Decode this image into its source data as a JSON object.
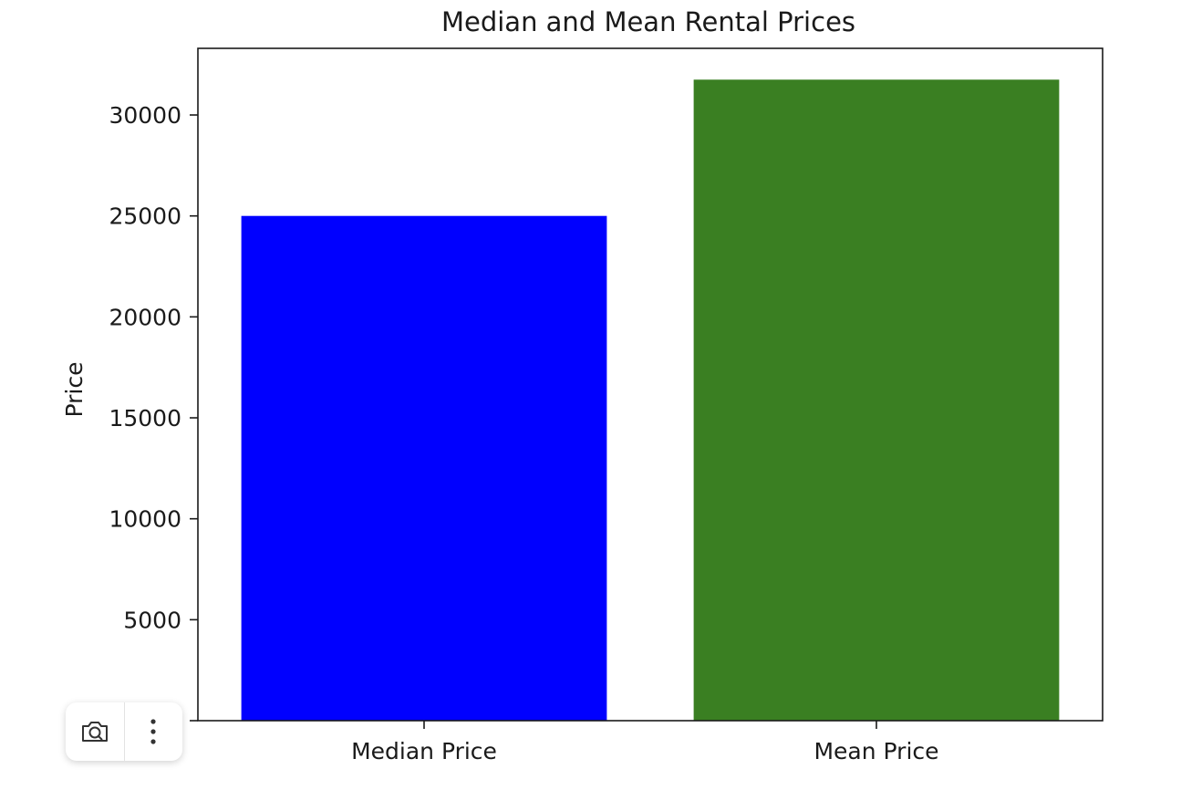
{
  "chart_data": {
    "type": "bar",
    "title": "Median and Mean Rental Prices",
    "xlabel": "",
    "ylabel": "Price",
    "categories": [
      "Median Price",
      "Mean Price"
    ],
    "values": [
      25000,
      31750
    ],
    "colors": [
      "#0000ff",
      "#3a7f22"
    ],
    "ylim": [
      0,
      33300
    ],
    "yticks": [
      0,
      5000,
      10000,
      15000,
      20000,
      25000,
      30000
    ],
    "ytick_labels": [
      "0",
      "5000",
      "10000",
      "15000",
      "20000",
      "25000",
      "30000"
    ],
    "grid": false,
    "legend": "none"
  },
  "toolbar": {
    "icons": [
      "camera-icon",
      "more-vertical-icon"
    ]
  }
}
